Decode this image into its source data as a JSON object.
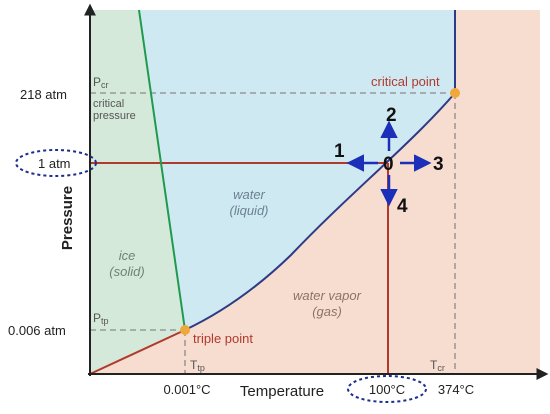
{
  "diagram": {
    "title": "",
    "y_axis_label": "Pressure",
    "x_axis_label": "Temperature",
    "y_ticks": {
      "critical": "218 atm",
      "atm": "1 atm",
      "triple": "0.006 atm"
    },
    "x_ticks": {
      "triple": "0.001°C",
      "boil": "100°C",
      "critical": "374°C"
    },
    "inside_labels": {
      "pcr": "P",
      "pcr_sub": "cr",
      "critical_pressure_l1": "critical",
      "critical_pressure_l2": "pressure",
      "ptp": "P",
      "ptp_sub": "tp",
      "ttp": "T",
      "ttp_sub": "tp",
      "tcr": "T",
      "tcr_sub": "cr"
    },
    "regions": {
      "solid_l1": "ice",
      "solid_l2": "(solid)",
      "liquid_l1": "water",
      "liquid_l2": "(liquid)",
      "gas_l1": "water vapor",
      "gas_l2": "(gas)"
    },
    "points": {
      "triple": "triple point",
      "critical": "critical point"
    },
    "arrow_labels": {
      "origin": "0",
      "left": "1",
      "up": "2",
      "right": "3",
      "down": "4"
    },
    "colors": {
      "solid_region": "#d5e9da",
      "liquid_region": "#cfe9f3",
      "gas_region": "#f6ddd0",
      "melting_line": "#1f9a4e",
      "vaporization_curve": "#2e3a86",
      "sublimation_line": "#b03a2e",
      "reference_line": "#b03a2e",
      "point_marker": "#f0a83c",
      "arrow": "#1b2fb8",
      "critical_point_label": "#b03a2e",
      "ellipse": "#1b2d8e"
    }
  }
}
